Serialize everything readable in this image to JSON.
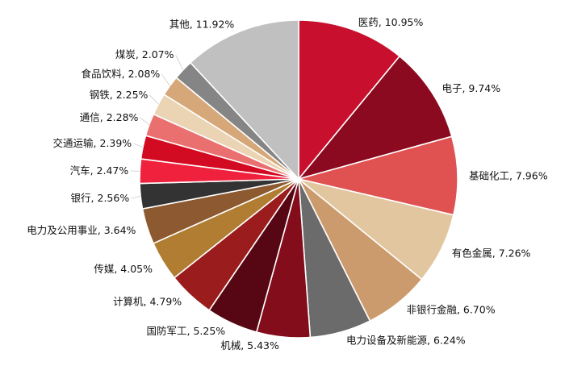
{
  "chart_data": {
    "type": "pie",
    "title": "",
    "start_angle_deg": 0,
    "direction": "clockwise",
    "slices": [
      {
        "label": "医药",
        "value": 10.95,
        "display": "10.95%",
        "color": "#c8102e"
      },
      {
        "label": "电子",
        "value": 9.74,
        "display": "9.74%",
        "color": "#8b0a1f"
      },
      {
        "label": "基础化工",
        "value": 7.96,
        "display": "7.96%",
        "color": "#e05252"
      },
      {
        "label": "有色金属",
        "value": 7.26,
        "display": "7.26%",
        "color": "#e2c6a0"
      },
      {
        "label": "非银行金融",
        "value": 6.7,
        "display": "6.70%",
        "color": "#cc9b6d"
      },
      {
        "label": "电力设备及新能源",
        "value": 6.24,
        "display": "6.24%",
        "color": "#6b6b6b"
      },
      {
        "label": "机械",
        "value": 5.43,
        "display": "5.43%",
        "color": "#830d1a"
      },
      {
        "label": "国防军工",
        "value": 5.25,
        "display": "5.25%",
        "color": "#560713"
      },
      {
        "label": "计算机",
        "value": 4.79,
        "display": "4.79%",
        "color": "#9b1c1c"
      },
      {
        "label": "传媒",
        "value": 4.05,
        "display": "4.05%",
        "color": "#b07d32"
      },
      {
        "label": "电力及公用事业",
        "value": 3.64,
        "display": "3.64%",
        "color": "#8c5930"
      },
      {
        "label": "银行",
        "value": 2.56,
        "display": "2.56%",
        "color": "#333333"
      },
      {
        "label": "汽车",
        "value": 2.47,
        "display": "2.47%",
        "color": "#f0213d"
      },
      {
        "label": "交通运输",
        "value": 2.39,
        "display": "2.39%",
        "color": "#d30b22"
      },
      {
        "label": "通信",
        "value": 2.28,
        "display": "2.28%",
        "color": "#ea6f6f"
      },
      {
        "label": "钢铁",
        "value": 2.25,
        "display": "2.25%",
        "color": "#ebd4b3"
      },
      {
        "label": "食品饮料",
        "value": 2.08,
        "display": "2.08%",
        "color": "#d6a879"
      },
      {
        "label": "煤炭",
        "value": 2.07,
        "display": "2.07%",
        "color": "#858585"
      },
      {
        "label": "其他",
        "value": 11.92,
        "display": "11.92%",
        "color": "#c0c0c0"
      }
    ]
  }
}
